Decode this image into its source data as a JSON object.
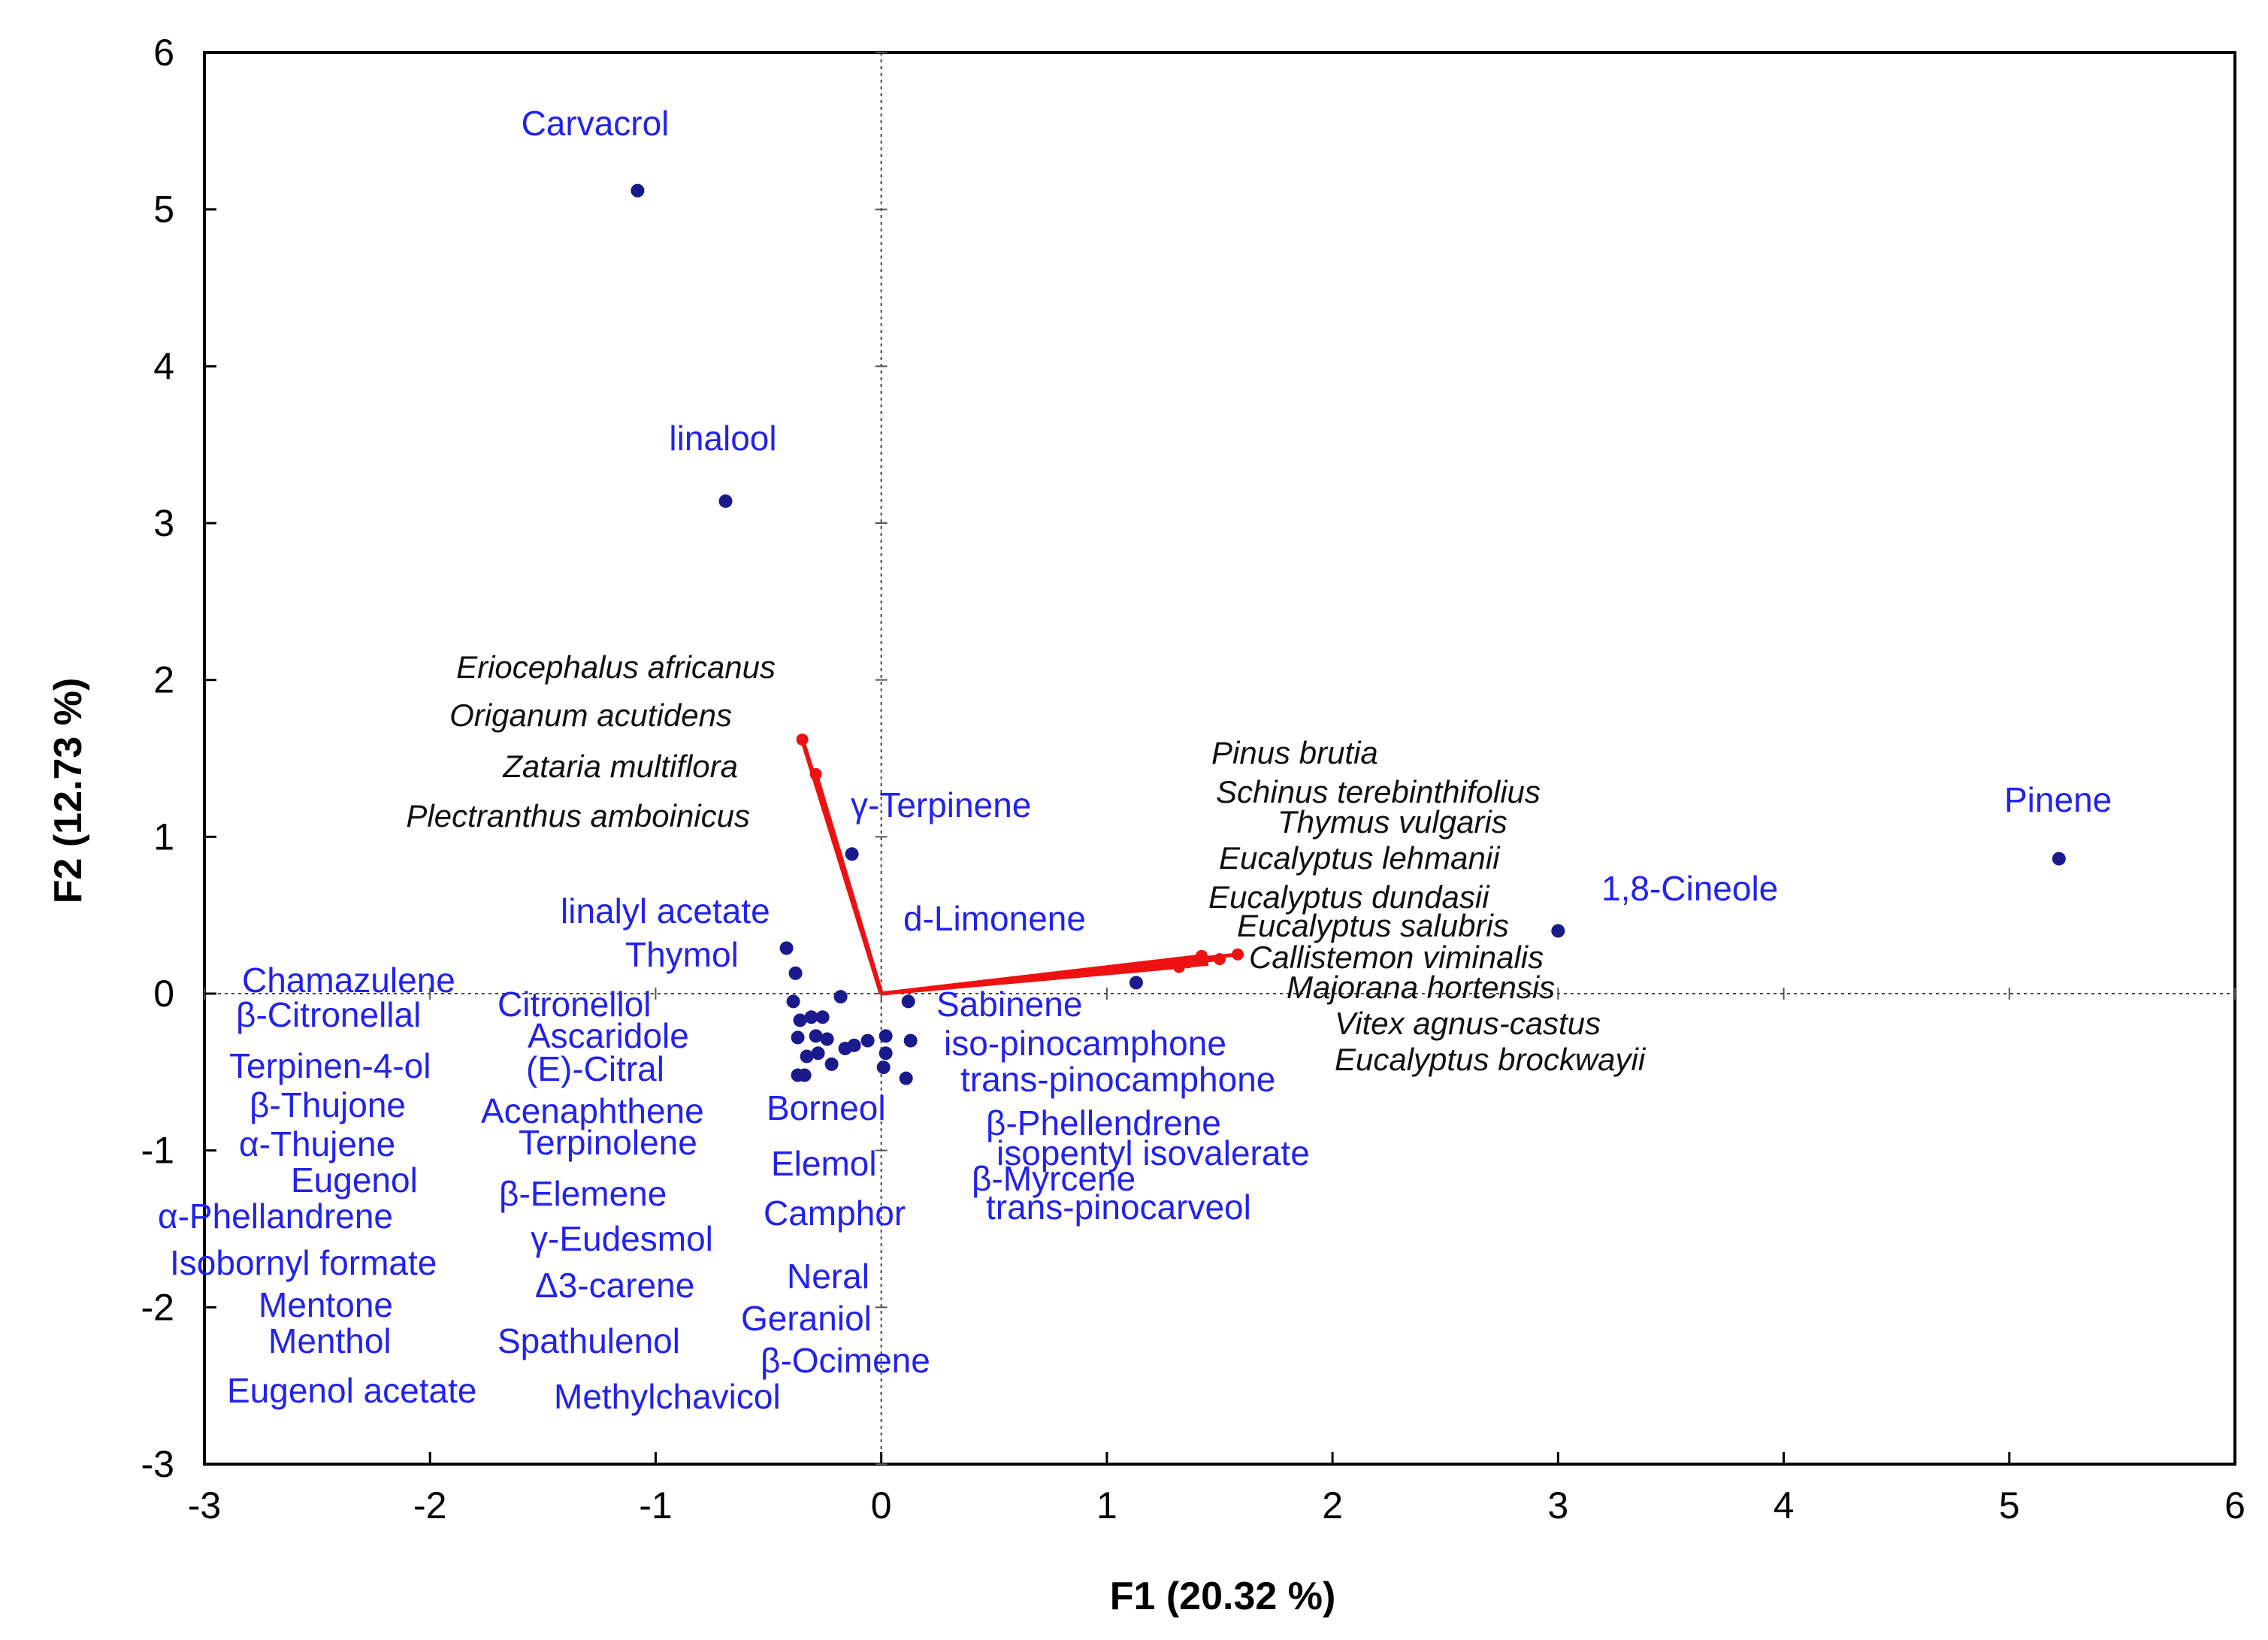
{
  "chart_data": {
    "type": "scatter",
    "title": "",
    "xlabel": "F1 (20.32 %)",
    "ylabel": "F2 (12.73 %)",
    "xlim": [
      -3,
      6
    ],
    "ylim": [
      -3,
      6
    ],
    "xticks": [
      -3,
      -2,
      -1,
      0,
      1,
      2,
      3,
      4,
      5,
      6
    ],
    "yticks": [
      -3,
      -2,
      -1,
      0,
      1,
      2,
      3,
      4,
      5,
      6
    ],
    "colors": {
      "points": "#1a1a8c",
      "compound_text": "#2222ee",
      "vectors": "#ee1111",
      "species_text": "#111111",
      "axes": "#000000"
    },
    "labeled_points": [
      {
        "name": "Carvacrol",
        "x": -1.08,
        "y": 5.12
      },
      {
        "name": "linalool",
        "x": -0.69,
        "y": 3.14
      },
      {
        "name": "γ-Terpinene",
        "x": -0.13,
        "y": 0.89
      },
      {
        "name": "Pinene",
        "x": 5.22,
        "y": 0.86
      },
      {
        "name": "1,8-Cineole",
        "x": 3.0,
        "y": 0.4
      },
      {
        "name": "linalyl acetate",
        "x": -0.42,
        "y": 0.29
      },
      {
        "name": "Thymol",
        "x": -0.38,
        "y": 0.13
      },
      {
        "name": "d-Limonene",
        "x": 1.13,
        "y": 0.07
      }
    ],
    "cluster_points": [
      {
        "x": -0.39,
        "y": -0.05
      },
      {
        "x": -0.36,
        "y": -0.17
      },
      {
        "x": -0.31,
        "y": -0.15
      },
      {
        "x": -0.26,
        "y": -0.15
      },
      {
        "x": -0.18,
        "y": -0.02
      },
      {
        "x": -0.37,
        "y": -0.28
      },
      {
        "x": -0.29,
        "y": -0.27
      },
      {
        "x": -0.24,
        "y": -0.29
      },
      {
        "x": -0.16,
        "y": -0.35
      },
      {
        "x": -0.12,
        "y": -0.33
      },
      {
        "x": -0.06,
        "y": -0.3
      },
      {
        "x": 0.02,
        "y": -0.27
      },
      {
        "x": 0.12,
        "y": -0.05
      },
      {
        "x": 0.13,
        "y": -0.3
      },
      {
        "x": -0.33,
        "y": -0.4
      },
      {
        "x": -0.28,
        "y": -0.38
      },
      {
        "x": -0.22,
        "y": -0.45
      },
      {
        "x": -0.37,
        "y": -0.52
      },
      {
        "x": -0.34,
        "y": -0.52
      },
      {
        "x": 0.02,
        "y": -0.38
      },
      {
        "x": 0.01,
        "y": -0.47
      },
      {
        "x": 0.11,
        "y": -0.54
      }
    ],
    "vectors": [
      {
        "from": [
          0,
          0
        ],
        "to": [
          -0.35,
          1.62
        ]
      },
      {
        "from": [
          0,
          0
        ],
        "to": [
          1.58,
          0.25
        ]
      }
    ],
    "vector_nodes": [
      {
        "x": -0.35,
        "y": 1.62
      },
      {
        "x": -0.29,
        "y": 1.4
      },
      {
        "x": 1.32,
        "y": 0.17
      },
      {
        "x": 1.36,
        "y": 0.2
      },
      {
        "x": 1.42,
        "y": 0.24
      },
      {
        "x": 1.5,
        "y": 0.22
      },
      {
        "x": 1.58,
        "y": 0.25
      }
    ],
    "species_groups": [
      {
        "near": "F2",
        "names": [
          "Eriocephalus africanus",
          "Origanum acutidens",
          "Zataria multiflora",
          "Plectranthus amboinicus"
        ]
      },
      {
        "near": "F1",
        "names": [
          "Pinus brutia",
          "Schinus terebinthifolius",
          "Thymus vulgaris",
          "Eucalyptus lehmanii",
          "Eucalyptus dundasii",
          "Eucalyptus salubris",
          "Callistemon viminalis",
          "Majorana hortensis",
          "Vitex agnus-castus",
          "Eucalyptus brockwayii"
        ]
      }
    ],
    "cluster_labels": [
      "Chamazulene",
      "β-Citronellal",
      "Terpinen-4-ol",
      "β-Thujone",
      "α-Thujene",
      "Eugenol",
      "α-Phellandrene",
      "Isobornyl formate",
      "Mentone",
      "Menthol",
      "Eugenol acetate",
      "Citronellol",
      "Ascaridole",
      "(E)-Citral",
      "Acenaphthene",
      "Terpinolene",
      "β-Elemene",
      "γ-Eudesmol",
      "Δ3-carene",
      "Spathulenol",
      "Methylchavicol",
      "Borneol",
      "Elemol",
      "Camphor",
      "Neral",
      "Geraniol",
      "β-Ocimene",
      "Sabinene",
      "iso-pinocamphone",
      "trans-pinocamphone",
      "β-Phellendrene",
      "isopentyl isovalerate",
      "β-Myrcene",
      "trans-pinocarveol"
    ]
  }
}
